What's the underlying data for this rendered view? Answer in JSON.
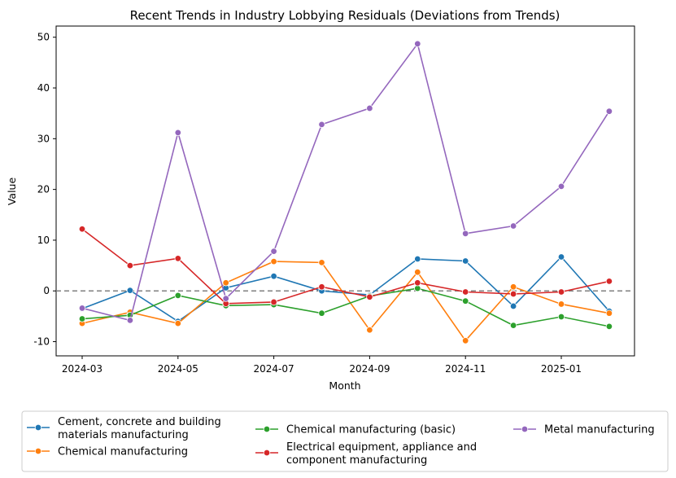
{
  "chart_data": {
    "type": "line",
    "title": "Recent Trends in Industry Lobbying Residuals (Deviations from Trends)",
    "xlabel": "Month",
    "ylabel": "Value",
    "x": [
      "2024-03",
      "2024-04",
      "2024-05",
      "2024-06",
      "2024-07",
      "2024-08",
      "2024-09",
      "2024-10",
      "2024-11",
      "2024-12",
      "2025-01",
      "2025-02"
    ],
    "x_ticks": [
      "2024-03",
      "2024-05",
      "2024-07",
      "2024-09",
      "2024-11",
      "2025-01"
    ],
    "y_ticks": [
      -10,
      0,
      10,
      20,
      30,
      40,
      50
    ],
    "ylim": [
      -12.8,
      52.2
    ],
    "reference_line": {
      "y": 0,
      "style": "dashed",
      "color": "#808080"
    },
    "grid": false,
    "legend_position": "bottom-outside",
    "series": [
      {
        "name": "Cement, concrete and building materials manufacturing",
        "color": "#1f77b4",
        "values": [
          -3.5,
          0.1,
          -6.0,
          0.6,
          2.9,
          0.0,
          -0.8,
          6.3,
          5.9,
          -3.0,
          6.7,
          -4.0
        ]
      },
      {
        "name": "Chemical manufacturing",
        "color": "#ff7f0e",
        "values": [
          -6.4,
          -4.2,
          -6.4,
          1.6,
          5.8,
          5.6,
          -7.7,
          3.7,
          -9.8,
          0.8,
          -2.6,
          -4.4
        ]
      },
      {
        "name": "Chemical manufacturing (basic)",
        "color": "#2ca02c",
        "values": [
          -5.5,
          -4.8,
          -0.9,
          -2.9,
          -2.7,
          -4.4,
          -1.0,
          0.5,
          -2.0,
          -6.8,
          -5.1,
          -7.0
        ]
      },
      {
        "name": "Electrical equipment, appliance and component manufacturing",
        "color": "#d62728",
        "values": [
          12.2,
          5.0,
          6.4,
          -2.5,
          -2.2,
          0.8,
          -1.2,
          1.6,
          -0.2,
          -0.6,
          -0.2,
          1.9
        ]
      },
      {
        "name": "Metal manufacturing",
        "color": "#9467bd",
        "values": [
          -3.4,
          -5.8,
          31.2,
          -1.5,
          7.8,
          32.8,
          36.0,
          48.7,
          11.3,
          12.8,
          20.6,
          35.4
        ]
      }
    ]
  }
}
